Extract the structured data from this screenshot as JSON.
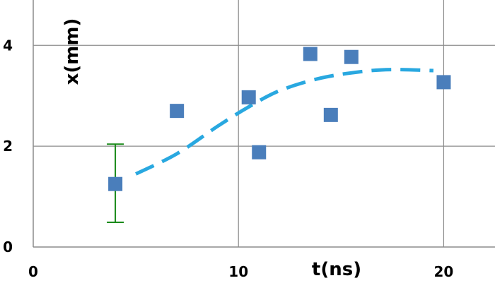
{
  "chart_data": {
    "type": "scatter",
    "xlabel": "t(ns)",
    "ylabel": "x(mm)",
    "xlim": [
      0,
      22.5
    ],
    "ylim": [
      0,
      4.9
    ],
    "x_ticks": [
      0,
      10,
      20
    ],
    "y_ticks": [
      0,
      2,
      4
    ],
    "grid": true,
    "colors": {
      "points": "#4a7ebb",
      "fit": "#29a8e0",
      "errorbar": "#1a8a1a",
      "grid": "#8c8c8c"
    },
    "series": [
      {
        "kind": "points",
        "x": [
          4.0,
          7.0,
          10.5,
          11.0,
          13.5,
          14.5,
          15.5,
          20.0
        ],
        "y": [
          1.25,
          2.7,
          2.97,
          1.88,
          3.83,
          2.62,
          3.77,
          3.27
        ]
      },
      {
        "kind": "fit",
        "x": [
          5.0,
          7.0,
          9.0,
          10.5,
          12.0,
          14.0,
          16.0,
          17.5,
          19.5
        ],
        "y": [
          1.45,
          1.85,
          2.4,
          2.78,
          3.1,
          3.35,
          3.48,
          3.52,
          3.5
        ]
      }
    ],
    "error_bars": [
      {
        "x": 4.0,
        "y_low": 0.49,
        "y_high": 2.04
      }
    ]
  }
}
